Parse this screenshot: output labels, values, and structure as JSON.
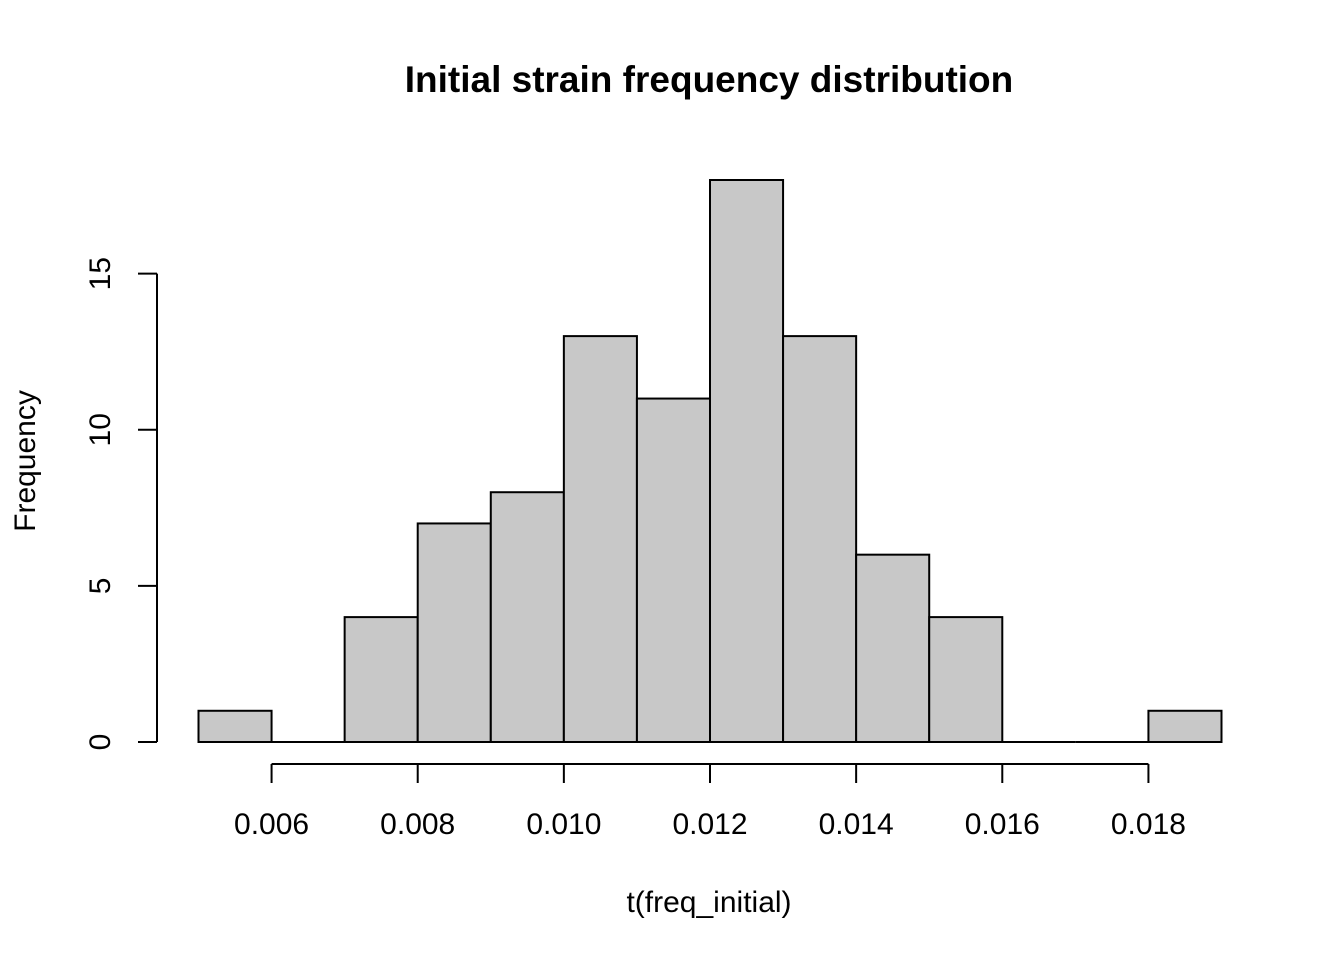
{
  "chart_data": {
    "type": "bar",
    "title": "Initial strain frequency distribution",
    "xlabel": "t(freq_initial)",
    "ylabel": "Frequency",
    "bin_edges": [
      0.005,
      0.006,
      0.007,
      0.008,
      0.009,
      0.01,
      0.011,
      0.012,
      0.013,
      0.014,
      0.015,
      0.016,
      0.017,
      0.018,
      0.019
    ],
    "counts": [
      1,
      0,
      4,
      7,
      8,
      13,
      11,
      18,
      13,
      6,
      4,
      0,
      0,
      1
    ],
    "xlim": [
      0.005,
      0.019
    ],
    "ylim": [
      0,
      18
    ],
    "x_ticks": [
      0.006,
      0.008,
      0.01,
      0.012,
      0.014,
      0.016,
      0.018
    ],
    "x_tick_labels": [
      "0.006",
      "0.008",
      "0.010",
      "0.012",
      "0.014",
      "0.016",
      "0.018"
    ],
    "y_ticks": [
      0,
      5,
      10,
      15
    ],
    "y_tick_labels": [
      "0",
      "5",
      "10",
      "15"
    ],
    "grid": false,
    "legend": "none",
    "colors": {
      "bar_fill": "#c8c8c8",
      "bar_stroke": "#000000",
      "axis": "#000000"
    }
  }
}
